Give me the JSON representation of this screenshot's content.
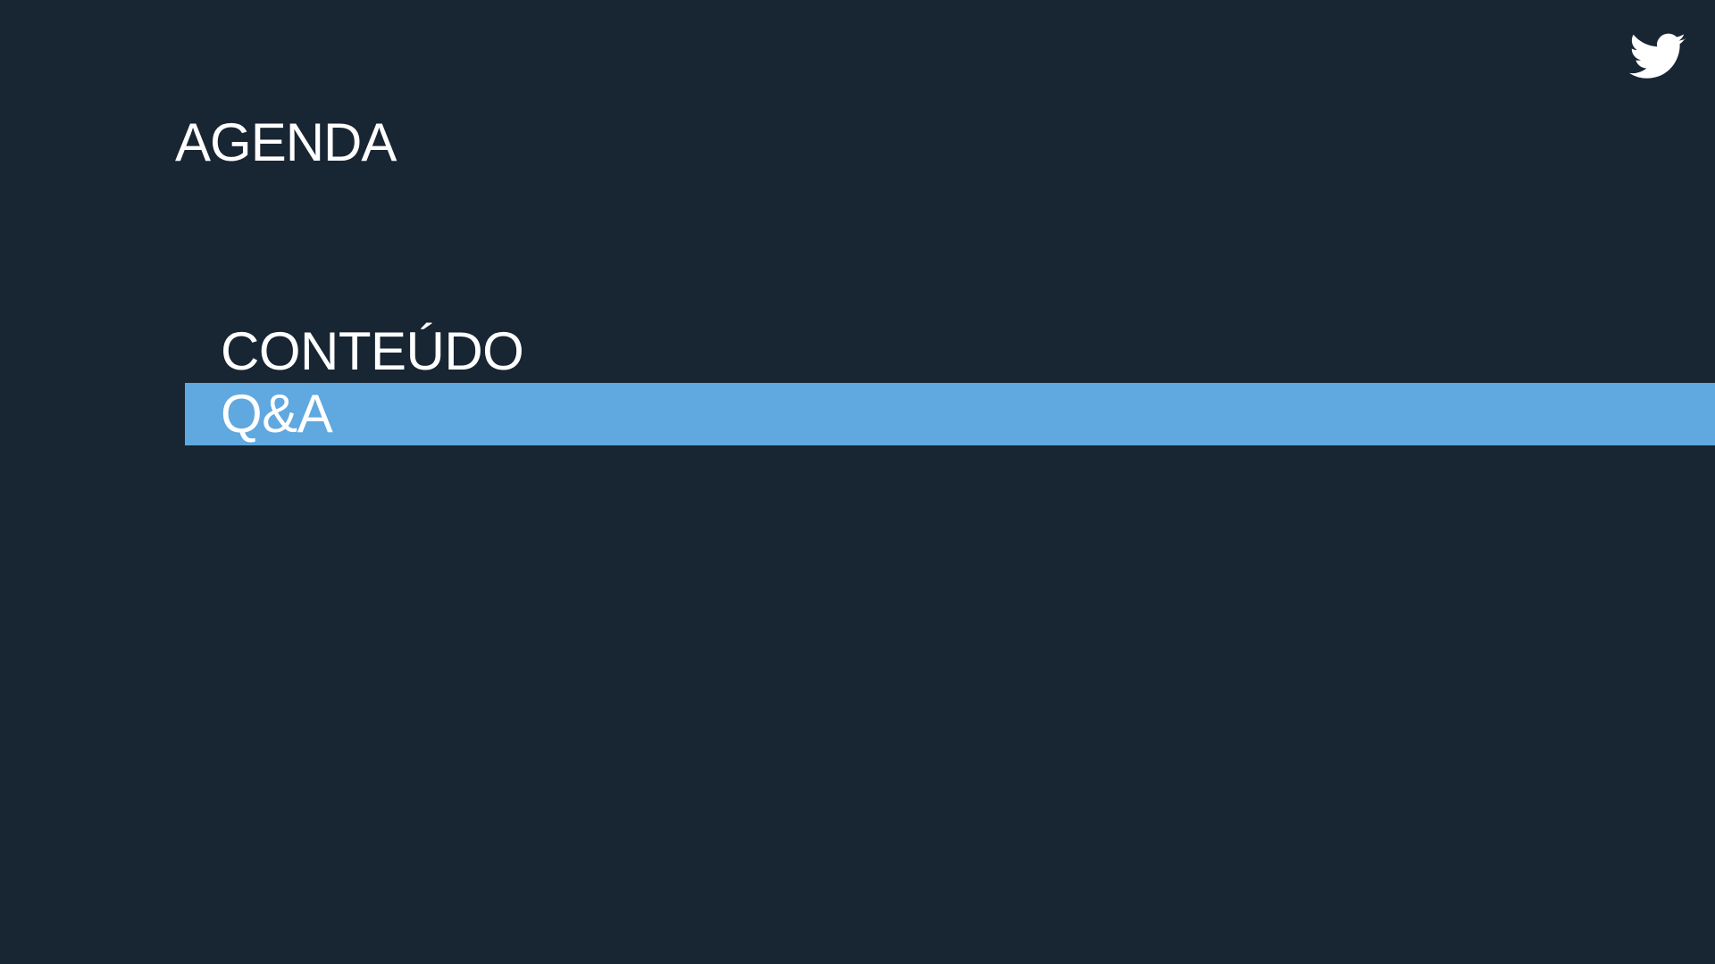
{
  "slide": {
    "title": "AGENDA",
    "logo_icon": "twitter-bird-icon",
    "items": [
      {
        "label": "CONTEÚDO",
        "active": false
      },
      {
        "label": "Q&A",
        "active": true
      }
    ]
  },
  "colors": {
    "background": "#182533",
    "highlight": "#5fa8e0",
    "text": "#ffffff"
  }
}
